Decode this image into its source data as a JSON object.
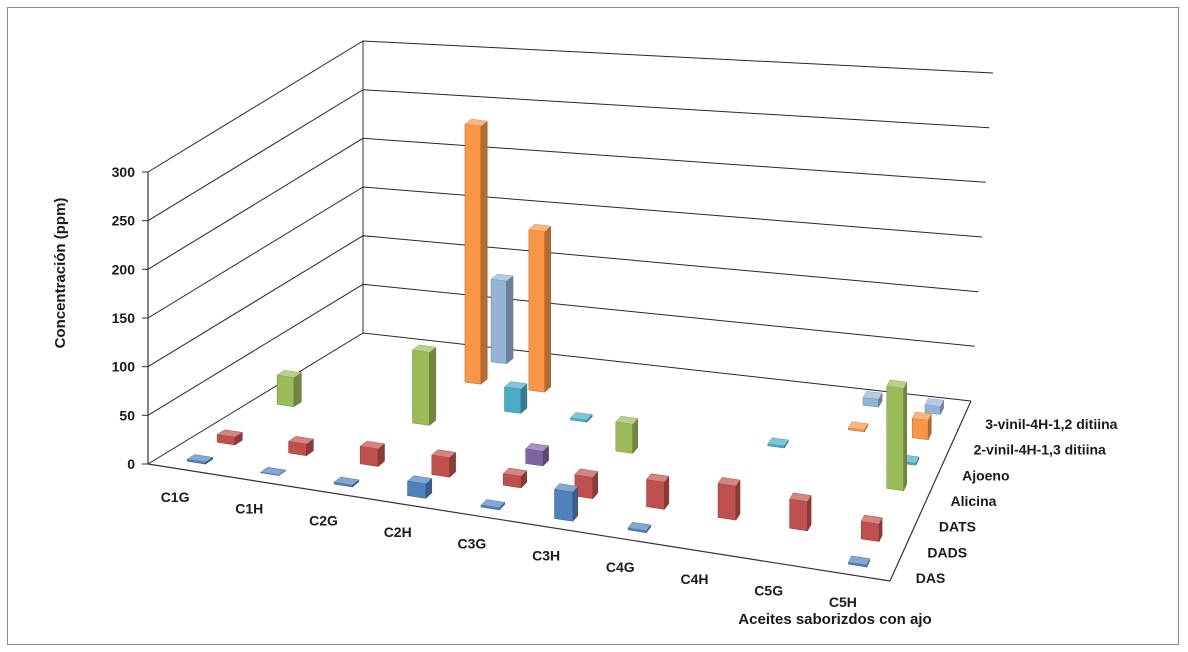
{
  "chart_data": {
    "type": "bar",
    "subtype": "3d-column",
    "title": "",
    "xlabel": "Aceites saborizdos con ajo",
    "ylabel": "Concentración (ppm)",
    "ylim": [
      0,
      300
    ],
    "yticks": [
      0,
      50,
      100,
      150,
      200,
      250,
      300
    ],
    "grid": true,
    "categories": [
      "C1G",
      "C1H",
      "C2G",
      "C2H",
      "C3G",
      "C3H",
      "C4G",
      "C4H",
      "C5G",
      "C5H"
    ],
    "series": [
      {
        "name": "DAS",
        "color": "#4f81bd",
        "values": [
          2,
          0.5,
          2,
          15,
          2,
          30,
          2,
          0,
          0,
          2
        ]
      },
      {
        "name": "DADS",
        "color": "#c0504d",
        "values": [
          8,
          12,
          18,
          20,
          12,
          22,
          28,
          35,
          30,
          18
        ]
      },
      {
        "name": "DATS",
        "color": "#8064a2",
        "values": [
          0,
          0,
          0,
          0,
          15,
          0,
          0,
          0,
          0,
          0
        ]
      },
      {
        "name": "Alicina",
        "color": "#9bbb59",
        "values": [
          30,
          0,
          75,
          0,
          0,
          30,
          0,
          0,
          0,
          105
        ]
      },
      {
        "name": "Ajoeno",
        "color": "#4bacc6",
        "values": [
          0,
          0,
          0,
          25,
          2,
          0,
          0,
          2,
          0,
          2
        ]
      },
      {
        "name": "2-vinil-4H-1,3 ditiina",
        "color": "#f79646",
        "values": [
          0,
          0,
          265,
          165,
          0,
          0,
          0,
          0,
          2,
          20
        ]
      },
      {
        "name": "3-vinil-4H-1,2 ditiina",
        "color": "#95b3d7",
        "values": [
          0,
          0,
          85,
          0,
          0,
          0,
          0,
          0,
          8,
          8
        ]
      }
    ]
  }
}
